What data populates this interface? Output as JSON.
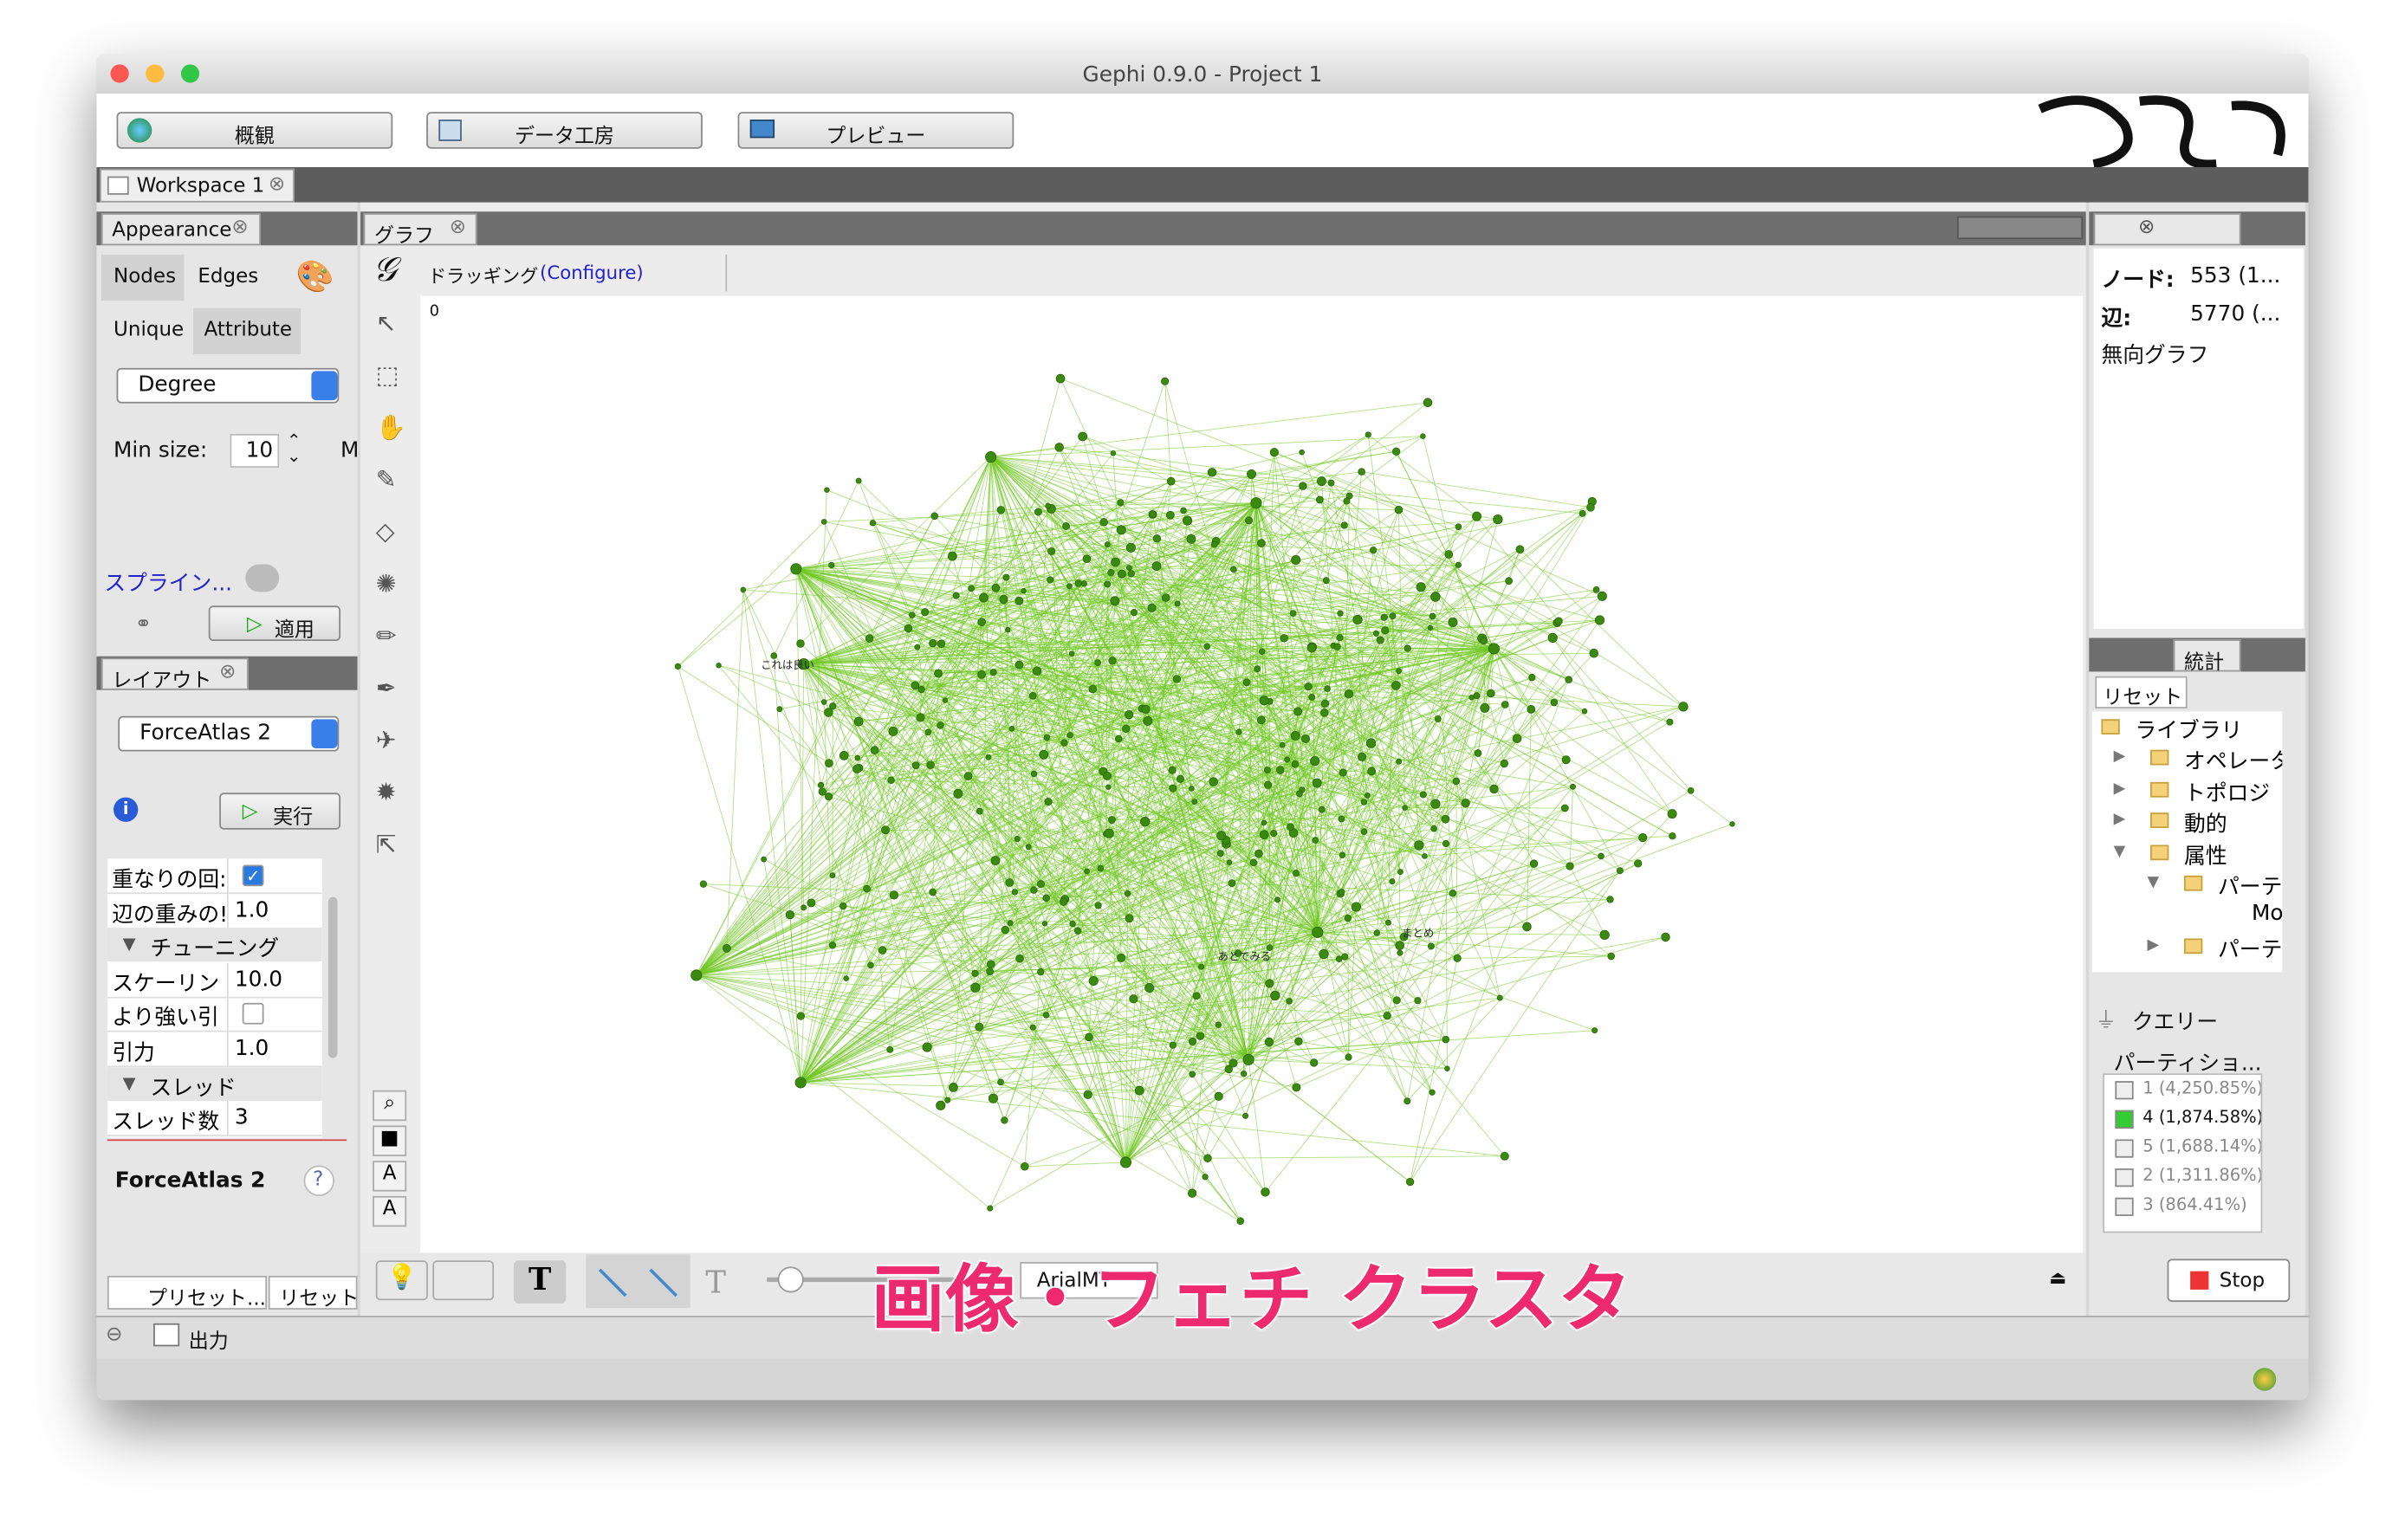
{
  "window": {
    "title": "Gephi 0.9.0 - Project 1"
  },
  "toolbar": {
    "buttons": [
      "概観",
      "データ工房",
      "プレビュー"
    ]
  },
  "workspace_tab": "Workspace 1",
  "appearance": {
    "title": "Appearance",
    "tabs": [
      "Nodes",
      "Edges"
    ],
    "subtabs": [
      "Unique",
      "Attribute"
    ],
    "attribute": "Degree",
    "min_size_label": "Min size:",
    "min_size": "10",
    "max_cut": "M",
    "spline": "スプライン...",
    "apply": "適用"
  },
  "layout": {
    "title": "レイアウト",
    "algorithm": "ForceAtlas 2",
    "run": "実行",
    "rows": [
      {
        "label": "重なりの回:",
        "checked": true
      },
      {
        "label": "辺の重みの!",
        "value": "1.0"
      },
      {
        "section": "チューニング"
      },
      {
        "label": "スケーリン",
        "value": "10.0"
      },
      {
        "label": "より強い引",
        "checked": false
      },
      {
        "label": "引力",
        "value": "1.0"
      },
      {
        "section": "スレッド"
      },
      {
        "label": "スレッド数",
        "value": "3"
      }
    ],
    "footer_title": "ForceAtlas 2",
    "help": "?",
    "preset": "プリセット...",
    "reset": "リセット"
  },
  "graph": {
    "tab": "グラフ",
    "tool": "ドラッギング",
    "configure": "(Configure)",
    "counter": "0",
    "font": "ArialMT",
    "labels": [
      "あとでみる",
      "まとめ",
      "これは良い"
    ]
  },
  "context": {
    "nodes_label": "ノード:",
    "nodes": "553 (1...",
    "edges_label": "辺:",
    "edges": "5770 (...",
    "graph_kind": "無向グラフ"
  },
  "statistics": {
    "tab": "統計",
    "reset": "リセット",
    "tree": [
      "ライブラリ",
      "オペレータ",
      "トポロジ",
      "動的",
      "属性",
      "パーティ",
      "Mod",
      "パーティ"
    ],
    "query": "クエリー",
    "partition": "パーティショ...",
    "legend": [
      {
        "label": "1 (4,250.85%)",
        "checked": false
      },
      {
        "label": "4 (1,874.58%)",
        "checked": true
      },
      {
        "label": "5 (1,688.14%)",
        "checked": false
      },
      {
        "label": "2 (1,311.86%)",
        "checked": false
      },
      {
        "label": "3 (864.41%)",
        "checked": false
      }
    ],
    "stop": "Stop"
  },
  "output": "出力",
  "caption": "画像・フェチ クラスタ"
}
